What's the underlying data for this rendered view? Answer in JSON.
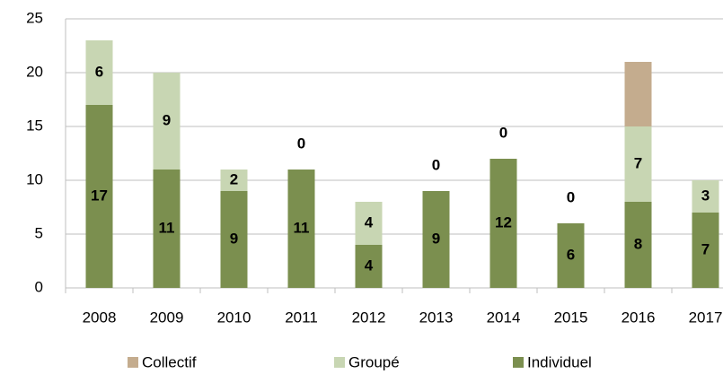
{
  "chart_data": {
    "type": "stacked_bar",
    "categories": [
      "2008",
      "2009",
      "2010",
      "2011",
      "2012",
      "2013",
      "2014",
      "2015",
      "2016",
      "2017"
    ],
    "series": [
      {
        "name": "Collectif",
        "color": "#c4ac8e",
        "values": [
          0,
          0,
          0,
          0,
          0,
          0,
          0,
          0,
          6,
          0
        ],
        "data_labels": false
      },
      {
        "name": "Groupé",
        "color": "#c8d6b3",
        "values": [
          6,
          9,
          2,
          0,
          4,
          0,
          0,
          0,
          7,
          3
        ],
        "data_labels": true
      },
      {
        "name": "Individuel",
        "color": "#7b8f4f",
        "values": [
          17,
          11,
          9,
          11,
          4,
          9,
          12,
          6,
          8,
          7
        ],
        "data_labels": true
      }
    ],
    "ylim": [
      0,
      25
    ],
    "yticks": [
      0,
      5,
      10,
      15,
      20,
      25
    ],
    "grid": true,
    "legend": "bottom"
  }
}
